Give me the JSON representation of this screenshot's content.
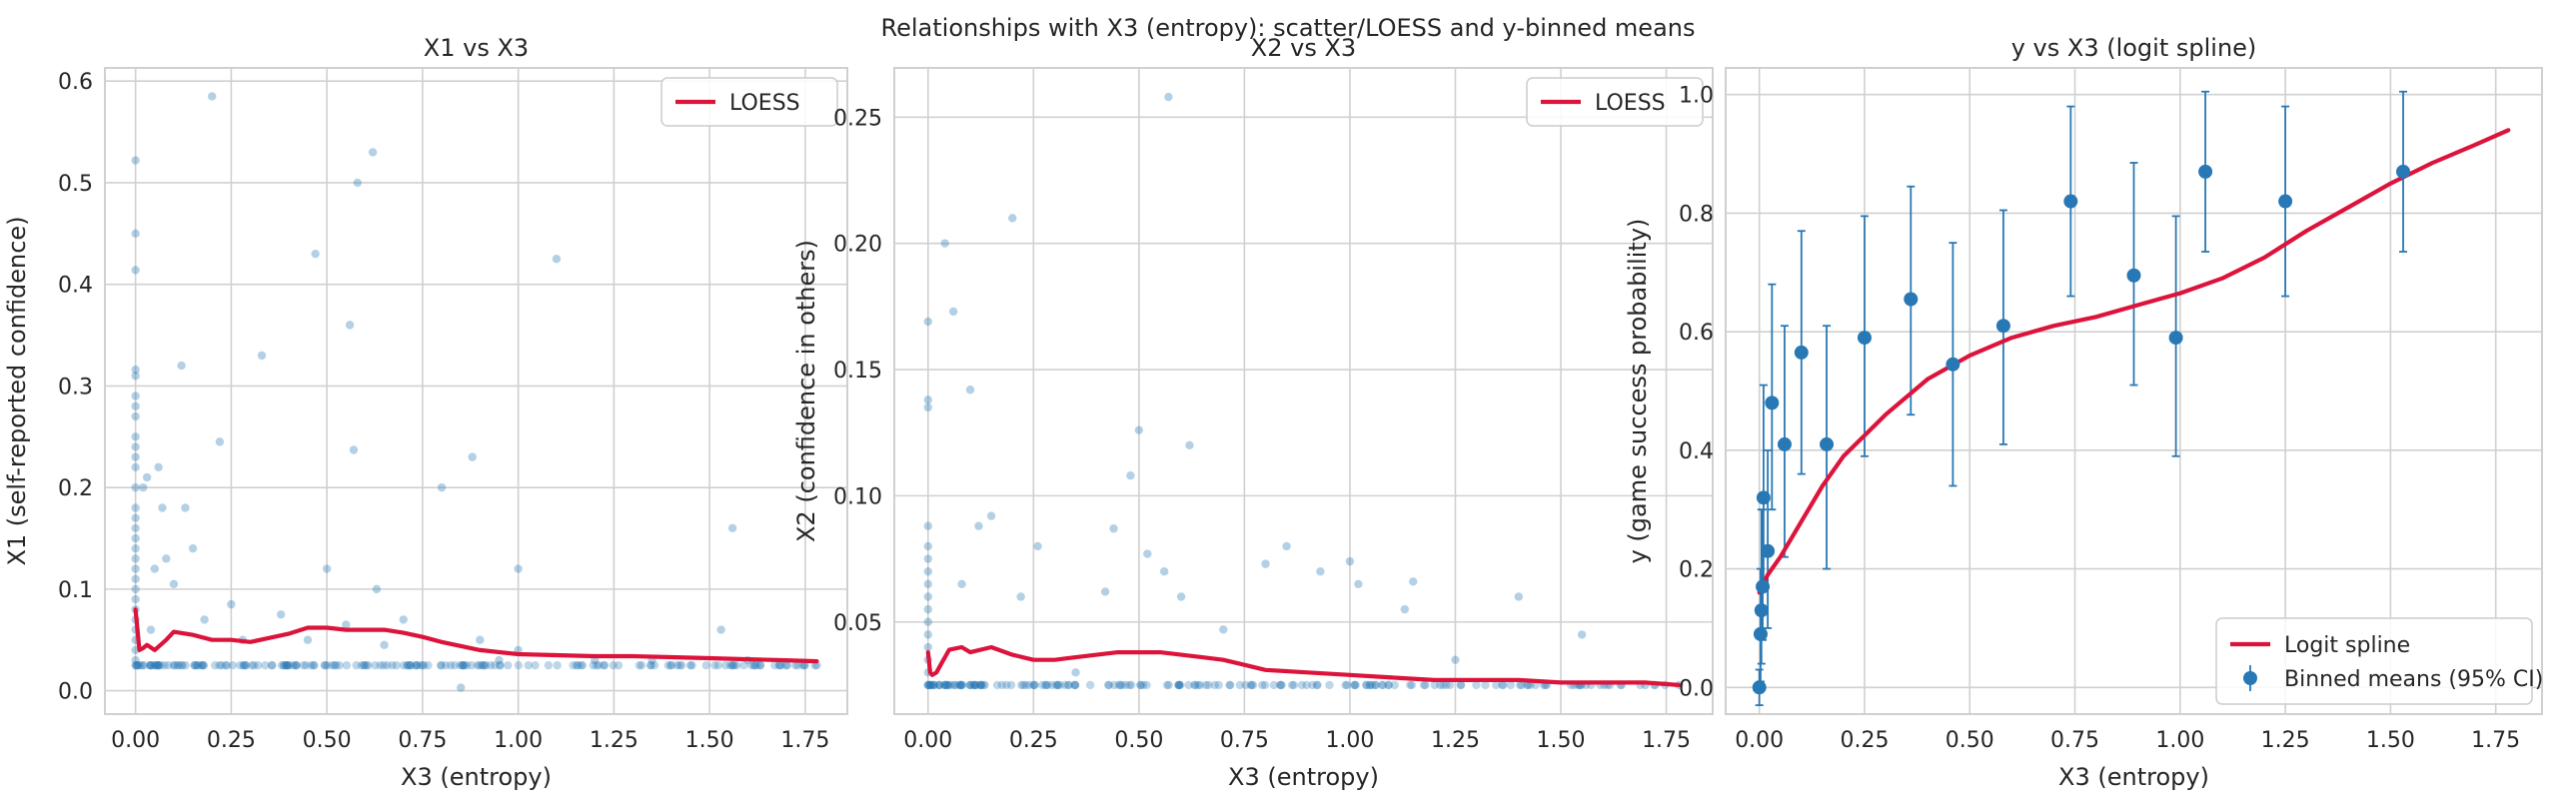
{
  "figure": {
    "suptitle": "Relationships with X3 (entropy): scatter/LOESS and y-binned means"
  },
  "colors": {
    "scatter": "#2878b5",
    "line": "#dc143c",
    "binned": "#2878b5",
    "grid": "#d0d0d0",
    "frame": "#d0d0d0"
  },
  "chart_data": [
    {
      "type": "scatter",
      "title": "X1 vs X3",
      "xlabel": "X3 (entropy)",
      "ylabel": "X1 (self-reported confidence)",
      "xlim": [
        -0.08,
        1.86
      ],
      "ylim": [
        -0.023,
        0.613
      ],
      "xticks": [
        0.0,
        0.25,
        0.5,
        0.75,
        1.0,
        1.25,
        1.5,
        1.75
      ],
      "xtick_labels": [
        "0.00",
        "0.25",
        "0.50",
        "0.75",
        "1.00",
        "1.25",
        "1.50",
        "1.75"
      ],
      "yticks": [
        0.0,
        0.1,
        0.2,
        0.3,
        0.4,
        0.5,
        0.6
      ],
      "ytick_labels": [
        "0.0",
        "0.1",
        "0.2",
        "0.3",
        "0.4",
        "0.5",
        "0.6"
      ],
      "grid": true,
      "legend": {
        "position": "top-right",
        "entries": [
          {
            "label": "LOESS",
            "kind": "line"
          }
        ]
      },
      "scatter_points": [
        [
          0.0,
          0.522
        ],
        [
          0.0,
          0.45
        ],
        [
          0.0,
          0.414
        ],
        [
          0.0,
          0.316
        ],
        [
          0.0,
          0.31
        ],
        [
          0.0,
          0.29
        ],
        [
          0.0,
          0.28
        ],
        [
          0.0,
          0.27
        ],
        [
          0.0,
          0.25
        ],
        [
          0.0,
          0.24
        ],
        [
          0.0,
          0.23
        ],
        [
          0.0,
          0.22
        ],
        [
          0.0,
          0.2
        ],
        [
          0.0,
          0.18
        ],
        [
          0.0,
          0.17
        ],
        [
          0.0,
          0.16
        ],
        [
          0.0,
          0.15
        ],
        [
          0.0,
          0.14
        ],
        [
          0.0,
          0.13
        ],
        [
          0.0,
          0.12
        ],
        [
          0.0,
          0.11
        ],
        [
          0.0,
          0.1
        ],
        [
          0.0,
          0.09
        ],
        [
          0.0,
          0.08
        ],
        [
          0.0,
          0.07
        ],
        [
          0.0,
          0.06
        ],
        [
          0.0,
          0.05
        ],
        [
          0.0,
          0.04
        ],
        [
          0.0,
          0.03
        ],
        [
          0.0,
          0.025
        ],
        [
          0.02,
          0.2
        ],
        [
          0.03,
          0.21
        ],
        [
          0.04,
          0.06
        ],
        [
          0.05,
          0.12
        ],
        [
          0.06,
          0.22
        ],
        [
          0.07,
          0.18
        ],
        [
          0.08,
          0.13
        ],
        [
          0.1,
          0.105
        ],
        [
          0.12,
          0.32
        ],
        [
          0.13,
          0.18
        ],
        [
          0.15,
          0.14
        ],
        [
          0.18,
          0.07
        ],
        [
          0.2,
          0.585
        ],
        [
          0.22,
          0.245
        ],
        [
          0.25,
          0.085
        ],
        [
          0.28,
          0.05
        ],
        [
          0.33,
          0.33
        ],
        [
          0.38,
          0.075
        ],
        [
          0.4,
          0.025
        ],
        [
          0.45,
          0.05
        ],
        [
          0.47,
          0.43
        ],
        [
          0.5,
          0.12
        ],
        [
          0.52,
          0.025
        ],
        [
          0.55,
          0.065
        ],
        [
          0.56,
          0.36
        ],
        [
          0.57,
          0.237
        ],
        [
          0.58,
          0.5
        ],
        [
          0.62,
          0.53
        ],
        [
          0.63,
          0.1
        ],
        [
          0.65,
          0.045
        ],
        [
          0.7,
          0.07
        ],
        [
          0.75,
          0.025
        ],
        [
          0.8,
          0.2
        ],
        [
          0.85,
          0.003
        ],
        [
          0.88,
          0.23
        ],
        [
          0.9,
          0.05
        ],
        [
          0.95,
          0.03
        ],
        [
          1.0,
          0.12
        ],
        [
          1.0,
          0.04
        ],
        [
          1.1,
          0.425
        ],
        [
          1.2,
          0.03
        ],
        [
          1.35,
          0.03
        ],
        [
          1.45,
          0.025
        ],
        [
          1.53,
          0.06
        ],
        [
          1.56,
          0.16
        ],
        [
          1.6,
          0.03
        ],
        [
          1.7,
          0.025
        ],
        [
          1.78,
          0.025
        ]
      ],
      "baseline_band": {
        "y": 0.025,
        "x_range": [
          0.0,
          1.78
        ],
        "count": 180
      },
      "line": {
        "name": "LOESS",
        "x": [
          0.0,
          0.005,
          0.01,
          0.02,
          0.03,
          0.05,
          0.08,
          0.1,
          0.15,
          0.2,
          0.25,
          0.3,
          0.35,
          0.4,
          0.45,
          0.5,
          0.55,
          0.6,
          0.65,
          0.7,
          0.75,
          0.8,
          0.9,
          1.0,
          1.1,
          1.2,
          1.3,
          1.4,
          1.5,
          1.6,
          1.7,
          1.78
        ],
        "y": [
          0.08,
          0.06,
          0.04,
          0.042,
          0.045,
          0.04,
          0.05,
          0.058,
          0.055,
          0.05,
          0.05,
          0.048,
          0.052,
          0.056,
          0.062,
          0.062,
          0.06,
          0.06,
          0.06,
          0.057,
          0.053,
          0.048,
          0.04,
          0.036,
          0.035,
          0.034,
          0.034,
          0.033,
          0.032,
          0.031,
          0.03,
          0.029
        ]
      }
    },
    {
      "type": "scatter",
      "title": "X2 vs X3",
      "xlabel": "X3 (entropy)",
      "ylabel": "X2 (confidence in others)",
      "xlim": [
        -0.08,
        1.86
      ],
      "ylim": [
        0.0135,
        0.2695
      ],
      "xticks": [
        0.0,
        0.25,
        0.5,
        0.75,
        1.0,
        1.25,
        1.5,
        1.75
      ],
      "xtick_labels": [
        "0.00",
        "0.25",
        "0.50",
        "0.75",
        "1.00",
        "1.25",
        "1.50",
        "1.75"
      ],
      "yticks": [
        0.05,
        0.1,
        0.15,
        0.2,
        0.25
      ],
      "ytick_labels": [
        "0.05",
        "0.10",
        "0.15",
        "0.20",
        "0.25"
      ],
      "grid": true,
      "legend": {
        "position": "top-right",
        "entries": [
          {
            "label": "LOESS",
            "kind": "line"
          }
        ]
      },
      "scatter_points": [
        [
          0.0,
          0.169
        ],
        [
          0.0,
          0.138
        ],
        [
          0.0,
          0.135
        ],
        [
          0.0,
          0.088
        ],
        [
          0.0,
          0.08
        ],
        [
          0.0,
          0.075
        ],
        [
          0.0,
          0.07
        ],
        [
          0.0,
          0.065
        ],
        [
          0.0,
          0.06
        ],
        [
          0.0,
          0.055
        ],
        [
          0.0,
          0.05
        ],
        [
          0.0,
          0.045
        ],
        [
          0.0,
          0.04
        ],
        [
          0.0,
          0.035
        ],
        [
          0.0,
          0.03
        ],
        [
          0.0,
          0.025
        ],
        [
          0.04,
          0.2
        ],
        [
          0.06,
          0.173
        ],
        [
          0.08,
          0.065
        ],
        [
          0.1,
          0.142
        ],
        [
          0.12,
          0.088
        ],
        [
          0.15,
          0.092
        ],
        [
          0.2,
          0.21
        ],
        [
          0.22,
          0.06
        ],
        [
          0.26,
          0.08
        ],
        [
          0.35,
          0.03
        ],
        [
          0.42,
          0.062
        ],
        [
          0.44,
          0.087
        ],
        [
          0.48,
          0.108
        ],
        [
          0.5,
          0.126
        ],
        [
          0.52,
          0.077
        ],
        [
          0.56,
          0.07
        ],
        [
          0.57,
          0.258
        ],
        [
          0.6,
          0.06
        ],
        [
          0.62,
          0.12
        ],
        [
          0.7,
          0.047
        ],
        [
          0.8,
          0.073
        ],
        [
          0.85,
          0.08
        ],
        [
          0.93,
          0.07
        ],
        [
          1.0,
          0.074
        ],
        [
          1.02,
          0.065
        ],
        [
          1.13,
          0.055
        ],
        [
          1.15,
          0.066
        ],
        [
          1.25,
          0.035
        ],
        [
          1.4,
          0.06
        ],
        [
          1.55,
          0.045
        ],
        [
          1.7,
          0.025
        ],
        [
          1.78,
          0.025
        ]
      ],
      "baseline_band": {
        "y": 0.025,
        "x_range": [
          0.0,
          1.78
        ],
        "count": 180
      },
      "line": {
        "name": "LOESS",
        "x": [
          0.0,
          0.005,
          0.01,
          0.02,
          0.03,
          0.05,
          0.08,
          0.1,
          0.15,
          0.2,
          0.25,
          0.3,
          0.35,
          0.4,
          0.45,
          0.5,
          0.55,
          0.6,
          0.65,
          0.7,
          0.75,
          0.8,
          0.9,
          1.0,
          1.1,
          1.2,
          1.3,
          1.4,
          1.5,
          1.6,
          1.7,
          1.78
        ],
        "y": [
          0.038,
          0.03,
          0.029,
          0.03,
          0.033,
          0.039,
          0.04,
          0.038,
          0.04,
          0.037,
          0.035,
          0.035,
          0.036,
          0.037,
          0.038,
          0.038,
          0.038,
          0.037,
          0.036,
          0.035,
          0.033,
          0.031,
          0.03,
          0.029,
          0.028,
          0.027,
          0.027,
          0.027,
          0.026,
          0.026,
          0.026,
          0.025
        ]
      }
    },
    {
      "type": "line",
      "title": "y vs X3 (logit spline)",
      "xlabel": "X3 (entropy)",
      "ylabel": "y (game success probability)",
      "xlim": [
        -0.08,
        1.86
      ],
      "ylim": [
        -0.045,
        1.045
      ],
      "xticks": [
        0.0,
        0.25,
        0.5,
        0.75,
        1.0,
        1.25,
        1.5,
        1.75
      ],
      "xtick_labels": [
        "0.00",
        "0.25",
        "0.50",
        "0.75",
        "1.00",
        "1.25",
        "1.50",
        "1.75"
      ],
      "yticks": [
        0.0,
        0.2,
        0.4,
        0.6,
        0.8,
        1.0
      ],
      "ytick_labels": [
        "0.0",
        "0.2",
        "0.4",
        "0.6",
        "0.8",
        "1.0"
      ],
      "grid": true,
      "legend": {
        "position": "bottom-right",
        "entries": [
          {
            "label": "Logit spline",
            "kind": "line"
          },
          {
            "label": "Binned means (95% CI)",
            "kind": "errorbar"
          }
        ]
      },
      "line": {
        "name": "Logit spline",
        "x": [
          0.0,
          0.02,
          0.05,
          0.1,
          0.15,
          0.2,
          0.25,
          0.3,
          0.4,
          0.5,
          0.6,
          0.7,
          0.8,
          0.9,
          1.0,
          1.1,
          1.2,
          1.3,
          1.4,
          1.5,
          1.6,
          1.7,
          1.78
        ],
        "y": [
          0.16,
          0.19,
          0.22,
          0.28,
          0.34,
          0.39,
          0.425,
          0.46,
          0.52,
          0.56,
          0.59,
          0.61,
          0.625,
          0.645,
          0.665,
          0.69,
          0.725,
          0.77,
          0.81,
          0.85,
          0.885,
          0.915,
          0.94
        ]
      },
      "binned_means": {
        "name": "Binned means (95% CI)",
        "points": [
          {
            "x": 0.0,
            "y": 0.0,
            "lo": -0.03,
            "hi": 0.03
          },
          {
            "x": 0.003,
            "y": 0.09,
            "lo": 0.01,
            "hi": 0.2
          },
          {
            "x": 0.005,
            "y": 0.13,
            "lo": 0.04,
            "hi": 0.3
          },
          {
            "x": 0.008,
            "y": 0.17,
            "lo": 0.08,
            "hi": 0.3
          },
          {
            "x": 0.01,
            "y": 0.32,
            "lo": 0.18,
            "hi": 0.51
          },
          {
            "x": 0.02,
            "y": 0.23,
            "lo": 0.1,
            "hi": 0.4
          },
          {
            "x": 0.03,
            "y": 0.48,
            "lo": 0.3,
            "hi": 0.68
          },
          {
            "x": 0.06,
            "y": 0.41,
            "lo": 0.22,
            "hi": 0.61
          },
          {
            "x": 0.1,
            "y": 0.565,
            "lo": 0.36,
            "hi": 0.77
          },
          {
            "x": 0.16,
            "y": 0.41,
            "lo": 0.2,
            "hi": 0.61
          },
          {
            "x": 0.25,
            "y": 0.59,
            "lo": 0.39,
            "hi": 0.795
          },
          {
            "x": 0.36,
            "y": 0.655,
            "lo": 0.46,
            "hi": 0.845
          },
          {
            "x": 0.46,
            "y": 0.545,
            "lo": 0.34,
            "hi": 0.75
          },
          {
            "x": 0.58,
            "y": 0.61,
            "lo": 0.41,
            "hi": 0.805
          },
          {
            "x": 0.74,
            "y": 0.82,
            "lo": 0.66,
            "hi": 0.98
          },
          {
            "x": 0.89,
            "y": 0.695,
            "lo": 0.51,
            "hi": 0.885
          },
          {
            "x": 0.99,
            "y": 0.59,
            "lo": 0.39,
            "hi": 0.795
          },
          {
            "x": 1.06,
            "y": 0.87,
            "lo": 0.735,
            "hi": 1.005
          },
          {
            "x": 1.25,
            "y": 0.82,
            "lo": 0.66,
            "hi": 0.98
          },
          {
            "x": 1.53,
            "y": 0.87,
            "lo": 0.735,
            "hi": 1.005
          }
        ]
      }
    }
  ]
}
